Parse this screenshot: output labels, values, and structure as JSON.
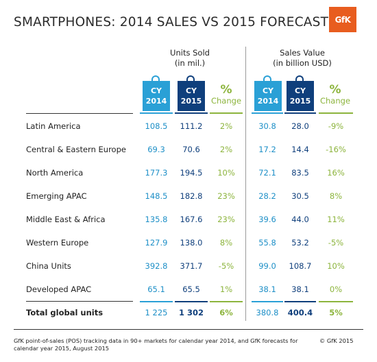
{
  "title": "SMARTPHONES: 2014 SALES VS 2015 FORECAST",
  "logo_text": "GfK",
  "groups": [
    {
      "heading_line1": "Units Sold",
      "heading_line2": "(in mil.)"
    },
    {
      "heading_line1": "Sales Value",
      "heading_line2": "(in billion USD)"
    }
  ],
  "column_headers": {
    "cy_label": "CY",
    "year_2014": "2014",
    "year_2015": "2015",
    "pct_symbol": "%",
    "pct_label": "Change"
  },
  "colors": {
    "cy2014": "#2aa0d6",
    "cy2015": "#0f3f7c",
    "change": "#8cb43c",
    "logo": "#e85d1f"
  },
  "chart_data": {
    "type": "table",
    "title": "SMARTPHONES: 2014 SALES VS 2015 FORECAST",
    "columns": [
      "Units Sold CY 2014",
      "Units Sold CY 2015",
      "Units Sold % Change",
      "Sales Value CY 2014",
      "Sales Value CY 2015",
      "Sales Value % Change"
    ],
    "rows": [
      {
        "region": "Latin America",
        "units_2014": "108.5",
        "units_2015": "111.2",
        "units_change": "2%",
        "value_2014": "30.8",
        "value_2015": "28.0",
        "value_change": "-9%"
      },
      {
        "region": "Central & Eastern Europe",
        "units_2014": "69.3",
        "units_2015": "70.6",
        "units_change": "2%",
        "value_2014": "17.2",
        "value_2015": "14.4",
        "value_change": "-16%"
      },
      {
        "region": "North America",
        "units_2014": "177.3",
        "units_2015": "194.5",
        "units_change": "10%",
        "value_2014": "72.1",
        "value_2015": "83.5",
        "value_change": "16%"
      },
      {
        "region": "Emerging APAC",
        "units_2014": "148.5",
        "units_2015": "182.8",
        "units_change": "23%",
        "value_2014": "28.2",
        "value_2015": "30.5",
        "value_change": "8%"
      },
      {
        "region": "Middle East & Africa",
        "units_2014": "135.8",
        "units_2015": "167.6",
        "units_change": "23%",
        "value_2014": "39.6",
        "value_2015": "44.0",
        "value_change": "11%"
      },
      {
        "region": "Western Europe",
        "units_2014": "127.9",
        "units_2015": "138.0",
        "units_change": "8%",
        "value_2014": "55.8",
        "value_2015": "53.2",
        "value_change": "-5%"
      },
      {
        "region": "China Units",
        "units_2014": "392.8",
        "units_2015": "371.7",
        "units_change": "-5%",
        "value_2014": "99.0",
        "value_2015": "108.7",
        "value_change": "10%"
      },
      {
        "region": "Developed APAC",
        "units_2014": "65.1",
        "units_2015": "65.5",
        "units_change": "1%",
        "value_2014": "38.1",
        "value_2015": "38.1",
        "value_change": "0%"
      }
    ],
    "total": {
      "region": "Total global units",
      "units_2014": "1 225",
      "units_2015": "1 302",
      "units_change": "6%",
      "value_2014": "380.8",
      "value_2015": "400.4",
      "value_change": "5%"
    }
  },
  "footnote": "GfK point-of-sales (POS) tracking data in 90+ markets for calendar year 2014, and GfK forecasts for calendar year 2015, August 2015",
  "copyright": "© GfK 2015"
}
